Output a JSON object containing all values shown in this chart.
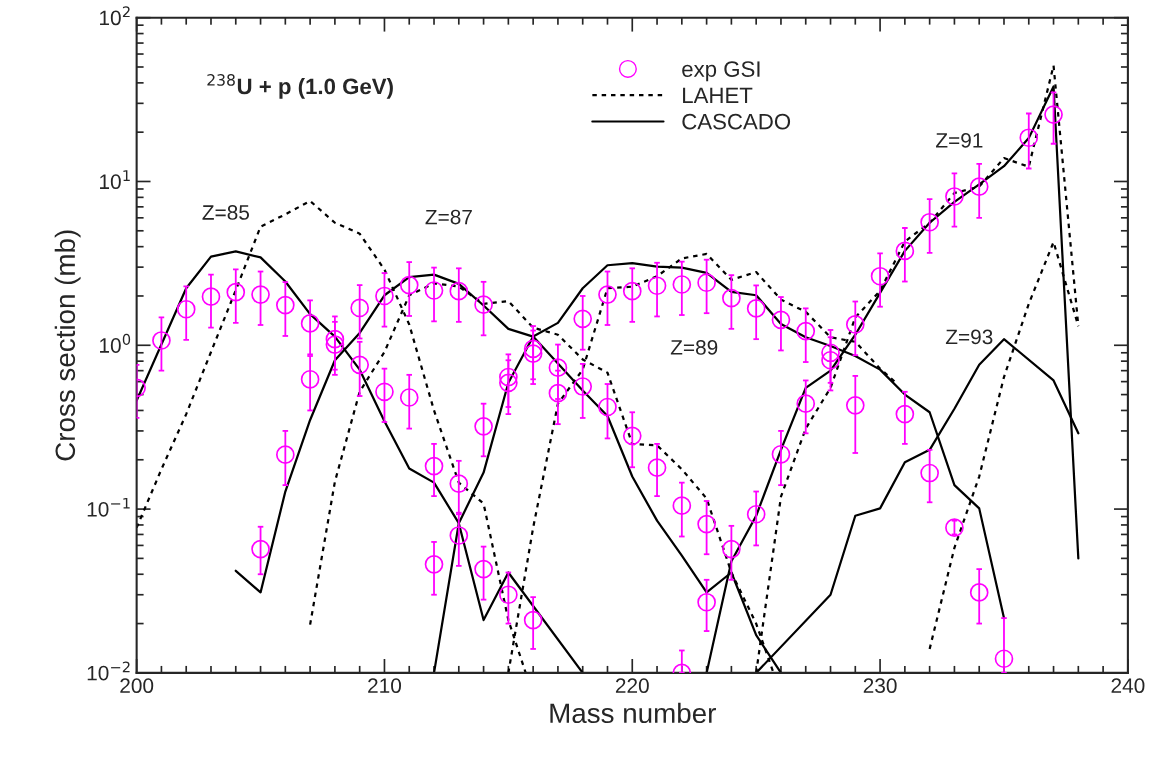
{
  "chart_data": {
    "type": "line",
    "xlabel": "Mass number",
    "ylabel": "Cross section (mb)",
    "log": "y",
    "xlim": [
      200,
      240
    ],
    "xticks": [
      200,
      210,
      220,
      230,
      240
    ],
    "ylim": [
      0.01,
      100
    ],
    "yticks": [
      {
        "value": 0.01,
        "label": "10$^{−2}$"
      },
      {
        "value": 0.1,
        "label": "10$^{−1}$"
      },
      {
        "value": 1,
        "label": "10$^{0}$"
      },
      {
        "value": 10,
        "label": "10$^{1}$"
      },
      {
        "value": 100,
        "label": "10$^{2}$"
      }
    ],
    "grid": false,
    "legend": "top",
    "annotations": [
      "$^{238}$U + p (1.0 GeV)",
      "Z=85",
      "Z=87",
      "Z=89",
      "Z=91",
      "Z=93"
    ],
    "series": [
      {
        "name": "exp GSI",
        "type": "scatter",
        "marker": "circle",
        "color": "#ff00ff",
        "x": [
          200,
          201,
          202,
          203,
          204,
          205,
          205,
          206,
          206,
          207,
          207,
          208,
          208,
          209,
          209,
          210,
          210,
          211,
          211,
          212,
          212,
          212,
          213,
          213,
          213,
          214,
          214,
          214,
          215,
          215,
          215,
          216,
          216,
          216,
          217,
          217,
          218,
          218,
          219,
          219,
          220,
          220,
          221,
          221,
          222,
          222,
          222,
          223,
          223,
          223,
          224,
          224,
          225,
          225,
          226,
          226,
          227,
          227,
          228,
          228,
          229,
          229,
          230,
          231,
          231,
          232,
          232,
          233,
          233,
          234,
          234,
          235,
          236,
          237
        ],
        "values": [
          0.55,
          1.07,
          1.66,
          1.98,
          2.11,
          2.04,
          0.057,
          1.76,
          0.215,
          1.36,
          0.62,
          1.09,
          1.01,
          1.69,
          0.76,
          2.0,
          0.52,
          2.33,
          0.48,
          2.16,
          0.183,
          0.046,
          2.14,
          0.143,
          0.069,
          1.77,
          0.32,
          0.043,
          0.64,
          0.59,
          0.03,
          0.95,
          0.89,
          0.021,
          0.73,
          0.51,
          1.45,
          0.56,
          2.04,
          0.42,
          2.14,
          0.28,
          2.31,
          0.179,
          2.35,
          0.105,
          0.01,
          2.41,
          0.081,
          0.027,
          1.94,
          0.057,
          1.68,
          0.093,
          1.43,
          0.216,
          1.22,
          0.44,
          0.9,
          0.81,
          1.34,
          0.43,
          2.64,
          3.77,
          0.38,
          5.64,
          0.166,
          8.1,
          0.077,
          9.3,
          0.031,
          0.0122,
          18.5,
          25.6
        ],
        "errors": [
          [
            0.36,
            0.76
          ],
          [
            0.7,
            1.48
          ],
          [
            1.08,
            2.29
          ],
          [
            1.28,
            2.7
          ],
          [
            1.37,
            2.91
          ],
          [
            1.33,
            2.82
          ],
          [
            0.04,
            0.078
          ],
          [
            1.14,
            2.43
          ],
          [
            0.14,
            0.3
          ],
          [
            0.88,
            1.88
          ],
          [
            0.4,
            0.86
          ],
          [
            0.71,
            1.5
          ],
          [
            0.66,
            1.39
          ],
          [
            1.1,
            2.33
          ],
          [
            0.49,
            1.05
          ],
          [
            1.3,
            2.76
          ],
          [
            0.34,
            0.72
          ],
          [
            1.51,
            3.22
          ],
          [
            0.31,
            0.66
          ],
          [
            1.4,
            2.98
          ],
          [
            0.12,
            0.25
          ],
          [
            0.03,
            0.063
          ],
          [
            1.39,
            2.95
          ],
          [
            0.093,
            0.197
          ],
          [
            0.045,
            0.095
          ],
          [
            1.15,
            2.44
          ],
          [
            0.21,
            0.44
          ],
          [
            0.028,
            0.059
          ],
          [
            0.42,
            0.88
          ],
          [
            0.38,
            0.81
          ],
          [
            0.02,
            0.041
          ],
          [
            0.62,
            1.31
          ],
          [
            0.58,
            1.23
          ],
          [
            0.014,
            0.029
          ],
          [
            0.47,
            1.01
          ],
          [
            0.33,
            0.7
          ],
          [
            0.94,
            2.0
          ],
          [
            0.36,
            0.77
          ],
          [
            1.33,
            2.82
          ],
          [
            0.27,
            0.58
          ],
          [
            1.39,
            2.95
          ],
          [
            0.18,
            0.39
          ],
          [
            1.5,
            3.19
          ],
          [
            0.12,
            0.25
          ],
          [
            1.53,
            3.24
          ],
          [
            0.068,
            0.145
          ],
          [
            0.01,
            0.0137
          ],
          [
            1.57,
            3.33
          ],
          [
            0.053,
            0.112
          ],
          [
            0.018,
            0.037
          ],
          [
            1.26,
            2.68
          ],
          [
            0.037,
            0.079
          ],
          [
            1.09,
            2.32
          ],
          [
            0.06,
            0.128
          ],
          [
            0.93,
            1.97
          ],
          [
            0.14,
            0.3
          ],
          [
            0.79,
            1.68
          ],
          [
            0.29,
            0.61
          ],
          [
            0.59,
            1.24
          ],
          [
            0.53,
            1.12
          ],
          [
            0.87,
            1.85
          ],
          [
            0.22,
            0.65
          ],
          [
            1.72,
            3.64
          ],
          [
            2.45,
            5.2
          ],
          [
            0.25,
            0.52
          ],
          [
            3.67,
            7.8
          ],
          [
            0.11,
            0.23
          ],
          [
            5.3,
            11.2
          ],
          [
            0.07,
            0.085
          ],
          [
            6.0,
            12.8
          ],
          [
            0.02,
            0.043
          ],
          [
            0.01,
            0.0216
          ],
          [
            12,
            26
          ],
          [
            17,
            35
          ]
        ]
      },
      {
        "name": "LAHET",
        "line_style": "dotted",
        "color": "#000000",
        "x": [
          200,
          201,
          202,
          203,
          204,
          205,
          206,
          207,
          208,
          209,
          210,
          211,
          212,
          213,
          214,
          215,
          215.7
        ],
        "values": [
          0.077,
          0.175,
          0.38,
          0.91,
          2.17,
          5.3,
          6.3,
          7.6,
          5.6,
          4.8,
          2.9,
          1.34,
          0.4,
          0.145,
          0.108,
          0.021,
          0.01
        ]
      },
      {
        "line_style": "dotted",
        "color": "#000000",
        "x": [
          207,
          208,
          209,
          210,
          211,
          212,
          213,
          214,
          215,
          216,
          217,
          218,
          219,
          220,
          221,
          222,
          223,
          224,
          225,
          225.7
        ],
        "values": [
          0.0197,
          0.147,
          0.52,
          0.91,
          2.02,
          2.39,
          2.28,
          1.79,
          1.86,
          1.28,
          1.16,
          0.82,
          0.68,
          0.25,
          0.245,
          0.175,
          0.116,
          0.041,
          0.02,
          0.01
        ]
      },
      {
        "line_style": "dotted",
        "color": "#000000",
        "x": [
          215,
          216,
          217,
          218,
          219,
          220,
          221,
          222,
          223,
          224,
          225,
          226,
          227,
          228,
          229,
          230,
          230.7
        ],
        "values": [
          0.01,
          0.077,
          0.44,
          0.71,
          2.23,
          2.28,
          2.64,
          3.39,
          3.61,
          2.51,
          2.8,
          1.9,
          1.6,
          1.12,
          1.05,
          0.72,
          0.58
        ]
      },
      {
        "line_style": "dotted",
        "color": "#000000",
        "x": [
          225,
          226,
          227,
          228,
          229,
          230,
          231,
          232,
          233,
          234,
          235,
          236,
          237,
          238
        ],
        "values": [
          0.01,
          0.119,
          0.31,
          0.55,
          1.48,
          2.15,
          4.3,
          5.6,
          8.5,
          9.3,
          13.9,
          12.3,
          51,
          1.31
        ]
      },
      {
        "line_style": "dotted",
        "color": "#000000",
        "x": [
          232,
          233,
          234,
          235,
          236,
          237,
          238
        ],
        "values": [
          0.014,
          0.058,
          0.158,
          0.64,
          1.79,
          4.27,
          1.31
        ]
      },
      {
        "name": "CASCADO",
        "line_style": "solid",
        "color": "#000000",
        "x": [
          200,
          202,
          203,
          204,
          205,
          206,
          207,
          208,
          209,
          210,
          211,
          212,
          213,
          214,
          215,
          218
        ],
        "values": [
          0.46,
          2.23,
          3.48,
          3.74,
          3.44,
          2.45,
          1.55,
          1.13,
          0.71,
          0.344,
          0.177,
          0.145,
          0.082,
          0.021,
          0.041,
          0.01
        ]
      },
      {
        "line_style": "solid",
        "color": "#000000",
        "x": [
          204,
          205,
          206,
          207,
          208,
          209,
          210,
          211,
          212,
          213,
          214,
          215,
          216,
          218,
          219,
          220,
          221,
          222,
          223,
          224,
          225,
          226
        ],
        "values": [
          0.042,
          0.031,
          0.128,
          0.35,
          0.81,
          1.19,
          2.02,
          2.61,
          2.7,
          2.37,
          1.75,
          1.26,
          1.13,
          0.53,
          0.37,
          0.158,
          0.085,
          0.052,
          0.031,
          0.041,
          0.017,
          0.01
        ]
      },
      {
        "line_style": "solid",
        "color": "#000000",
        "x": [
          212,
          213,
          214,
          215,
          216,
          217,
          218,
          219,
          220,
          221,
          222,
          223,
          224,
          225,
          226,
          227,
          228,
          229,
          230,
          231,
          232,
          233,
          234,
          235
        ],
        "values": [
          0.01,
          0.082,
          0.167,
          0.59,
          1.13,
          1.37,
          2.23,
          3.08,
          3.17,
          3.02,
          2.98,
          2.77,
          2.12,
          2.02,
          1.35,
          1.12,
          0.99,
          0.86,
          0.71,
          0.5,
          0.39,
          0.14,
          0.101,
          0.0216
        ]
      },
      {
        "line_style": "solid",
        "color": "#000000",
        "x": [
          223,
          224,
          225,
          226,
          227,
          228,
          229,
          230,
          231,
          232,
          233,
          234,
          235,
          236,
          237,
          238
        ],
        "values": [
          0.01,
          0.048,
          0.091,
          0.23,
          0.55,
          0.7,
          1.16,
          2.09,
          3.77,
          5.6,
          7.5,
          9.6,
          12.4,
          18.4,
          38,
          0.05
        ]
      },
      {
        "line_style": "solid",
        "color": "#000000",
        "x": [
          225,
          228,
          229,
          230,
          231,
          232,
          233,
          234,
          235,
          237,
          238
        ],
        "values": [
          0.01,
          0.03,
          0.091,
          0.101,
          0.193,
          0.23,
          0.41,
          0.76,
          1.09,
          0.61,
          0.29
        ]
      }
    ]
  }
}
